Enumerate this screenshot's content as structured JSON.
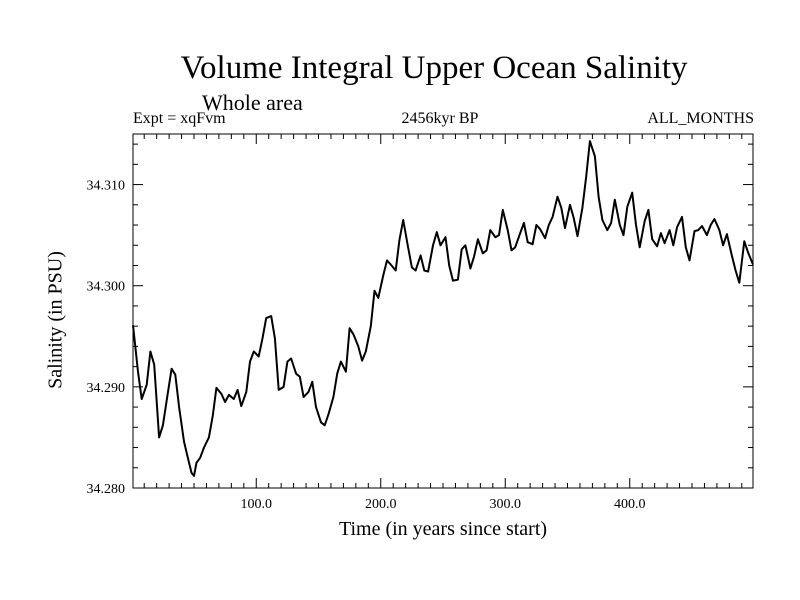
{
  "chart_data": {
    "type": "line",
    "title": "Volume Integral Upper Ocean Salinity",
    "subtitle": "Whole area",
    "header_left": "Expt = xqFvm",
    "header_center": "2456kyr BP",
    "header_right": "ALL_MONTHS",
    "xlabel": "Time (in years since start)",
    "ylabel": "Salinity (in PSU)",
    "xlim": [
      1,
      499
    ],
    "ylim": [
      34.28,
      34.315
    ],
    "xticks": [
      100,
      200,
      300,
      400
    ],
    "xtick_labels": [
      "100.0",
      "200.0",
      "300.0",
      "400.0"
    ],
    "yticks": [
      34.28,
      34.29,
      34.3,
      34.31
    ],
    "ytick_labels": [
      "34.280",
      "34.290",
      "34.300",
      "34.310"
    ],
    "grid": false,
    "series": [
      {
        "name": "Salinity",
        "x": [
          1,
          5,
          8,
          12,
          15,
          18,
          22,
          25,
          28,
          32,
          35,
          38,
          42,
          45,
          48,
          50,
          52,
          55,
          58,
          62,
          65,
          68,
          72,
          75,
          78,
          82,
          85,
          88,
          92,
          95,
          98,
          102,
          105,
          108,
          112,
          115,
          118,
          122,
          125,
          128,
          132,
          135,
          138,
          142,
          145,
          148,
          152,
          155,
          158,
          162,
          165,
          168,
          172,
          175,
          178,
          182,
          185,
          188,
          192,
          195,
          198,
          202,
          205,
          208,
          212,
          215,
          218,
          222,
          225,
          228,
          232,
          235,
          238,
          242,
          245,
          248,
          252,
          255,
          258,
          262,
          265,
          268,
          272,
          275,
          278,
          282,
          285,
          288,
          292,
          295,
          298,
          302,
          305,
          308,
          312,
          315,
          318,
          322,
          325,
          328,
          332,
          335,
          338,
          342,
          345,
          348,
          352,
          355,
          358,
          362,
          365,
          368,
          372,
          375,
          378,
          382,
          385,
          388,
          392,
          395,
          398,
          402,
          405,
          408,
          412,
          415,
          418,
          422,
          425,
          428,
          432,
          435,
          438,
          442,
          445,
          448,
          452,
          455,
          458,
          462,
          465,
          468,
          472,
          475,
          478,
          482,
          485,
          488,
          492,
          495,
          499
        ],
        "y": [
          34.2961,
          34.2915,
          34.2888,
          34.2902,
          34.2935,
          34.2922,
          34.285,
          34.2862,
          34.2886,
          34.2918,
          34.2912,
          34.288,
          34.2846,
          34.283,
          34.2815,
          34.2812,
          34.2825,
          34.283,
          34.284,
          34.285,
          34.2871,
          34.2899,
          34.2893,
          34.2885,
          34.2892,
          34.2888,
          34.2897,
          34.2881,
          34.2895,
          34.2925,
          34.2935,
          34.293,
          34.2948,
          34.2968,
          34.297,
          34.2948,
          34.2897,
          34.29,
          34.2925,
          34.2928,
          34.2913,
          34.291,
          34.289,
          34.2895,
          34.2905,
          34.288,
          34.2865,
          34.2862,
          34.2873,
          34.289,
          34.2913,
          34.2925,
          34.2915,
          34.2958,
          34.2952,
          34.294,
          34.2926,
          34.2935,
          34.296,
          34.2995,
          34.2988,
          34.301,
          34.3025,
          34.3021,
          34.3015,
          34.3045,
          34.3065,
          34.3038,
          34.3018,
          34.3015,
          34.303,
          34.3015,
          34.3014,
          34.304,
          34.3053,
          34.304,
          34.3048,
          34.302,
          34.3005,
          34.3006,
          34.3036,
          34.304,
          34.3017,
          34.3029,
          34.3046,
          34.3032,
          34.3035,
          34.3055,
          34.3048,
          34.305,
          34.3075,
          34.3055,
          34.3035,
          34.3038,
          34.3052,
          34.3062,
          34.3043,
          34.3041,
          34.306,
          34.3056,
          34.3047,
          34.306,
          34.3068,
          34.3088,
          34.3077,
          34.3057,
          34.308,
          34.3067,
          34.3049,
          34.3077,
          34.3108,
          34.3143,
          34.3128,
          34.3088,
          34.3065,
          34.3055,
          34.3062,
          34.3085,
          34.306,
          34.305,
          34.3078,
          34.3092,
          34.306,
          34.3038,
          34.3064,
          34.3075,
          34.3046,
          34.3039,
          34.3052,
          34.3042,
          34.3055,
          34.304,
          34.3058,
          34.3068,
          34.3038,
          34.3025,
          34.3054,
          34.3055,
          34.3059,
          34.305,
          34.306,
          34.3066,
          34.3055,
          34.304,
          34.3051,
          34.303,
          34.3015,
          34.3003,
          34.3044,
          34.3033,
          34.3021
        ]
      }
    ]
  }
}
